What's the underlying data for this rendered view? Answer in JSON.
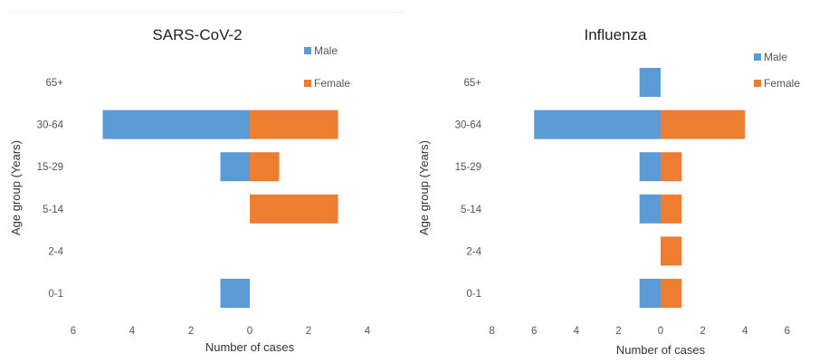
{
  "chart_data": [
    {
      "type": "bar",
      "orientation": "horizontal",
      "layout": "population-pyramid",
      "title": "SARS-CoV-2",
      "xlabel": "Number of cases",
      "ylabel": "Age group (Years)",
      "categories": [
        "0-1",
        "2-4",
        "5-14",
        "15-29",
        "30-64",
        "65+"
      ],
      "series": [
        {
          "name": "Male",
          "color": "#5b9bd5",
          "values": [
            1,
            0,
            0,
            1,
            5,
            0
          ]
        },
        {
          "name": "Female",
          "color": "#ed7d31",
          "values": [
            0,
            0,
            3,
            1,
            3,
            0
          ]
        }
      ],
      "xlim": [
        -6,
        4
      ],
      "xticks": [
        -6,
        -4,
        -2,
        0,
        2,
        4
      ],
      "xtick_labels": [
        "6",
        "4",
        "2",
        "0",
        "2",
        "4"
      ],
      "grid": false,
      "legend_position": "top-right"
    },
    {
      "type": "bar",
      "orientation": "horizontal",
      "layout": "population-pyramid",
      "title": "Influenza",
      "xlabel": "Number of cases",
      "ylabel": "Age group (Years)",
      "categories": [
        "0-1",
        "2-4",
        "5-14",
        "15-29",
        "30-64",
        "65+"
      ],
      "series": [
        {
          "name": "Male",
          "color": "#5b9bd5",
          "values": [
            1,
            0,
            1,
            1,
            6,
            1
          ]
        },
        {
          "name": "Female",
          "color": "#ed7d31",
          "values": [
            1,
            1,
            1,
            1,
            4,
            0
          ]
        }
      ],
      "xlim": [
        -8,
        6
      ],
      "xticks": [
        -8,
        -6,
        -4,
        -2,
        0,
        2,
        4,
        6
      ],
      "xtick_labels": [
        "8",
        "6",
        "4",
        "2",
        "0",
        "2",
        "4",
        "6"
      ],
      "grid": false,
      "legend_position": "top-right"
    }
  ]
}
